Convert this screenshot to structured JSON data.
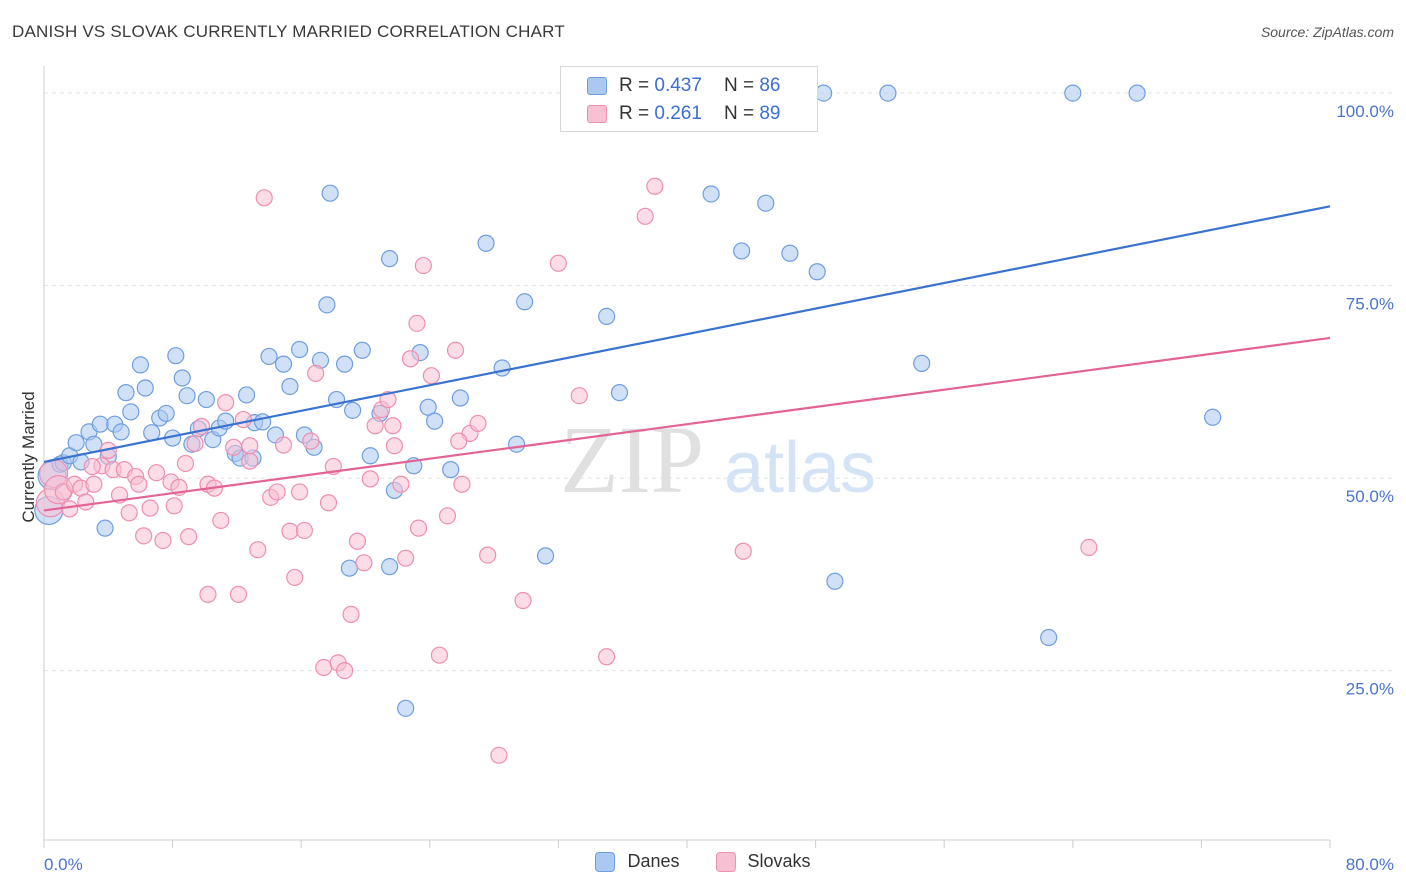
{
  "title": "DANISH VS SLOVAK CURRENTLY MARRIED CORRELATION CHART",
  "source": "Source: ZipAtlas.com",
  "watermark": {
    "zip": "ZIP",
    "atlas": "atlas"
  },
  "legend_stats": [
    {
      "r_label": "R =",
      "r_value": "0.437",
      "n_label": "N =",
      "n_value": "86",
      "color": "#aac8f0",
      "stroke": "#6f9ee0"
    },
    {
      "r_label": "R =",
      "r_value": "0.261",
      "n_label": "N =",
      "n_value": "89",
      "color": "#f8c0d3",
      "stroke": "#ee8fb0"
    }
  ],
  "chart_data": {
    "type": "scatter",
    "title": "DANISH VS SLOVAK CURRENTLY MARRIED CORRELATION CHART",
    "xlabel": "",
    "ylabel": "Currently Married",
    "xlim": [
      0,
      80
    ],
    "ylim": [
      3,
      103
    ],
    "x_tick_labels": [
      "0.0%",
      "80.0%"
    ],
    "y_ticks": [
      25,
      50,
      75,
      100
    ],
    "y_tick_labels": [
      "25.0%",
      "50.0%",
      "75.0%",
      "100.0%"
    ],
    "grid": true,
    "legend_position": "bottom",
    "series": [
      {
        "name": "Danes",
        "color": "#6f9ee0",
        "fill": "#aac8f0",
        "line_color": "#3a72d0",
        "trend": [
          [
            0,
            52.1
          ],
          [
            80,
            85.3
          ]
        ],
        "points": [
          [
            0.3,
            45.8
          ],
          [
            0.5,
            50.3
          ],
          [
            1.0,
            51.8
          ],
          [
            1.2,
            52.0
          ],
          [
            1.6,
            52.9
          ],
          [
            2.0,
            54.6
          ],
          [
            2.3,
            52.1
          ],
          [
            2.8,
            56.0
          ],
          [
            3.1,
            54.4
          ],
          [
            3.5,
            57.0
          ],
          [
            4.0,
            52.8
          ],
          [
            4.4,
            57.0
          ],
          [
            4.8,
            56.0
          ],
          [
            5.1,
            61.1
          ],
          [
            5.4,
            58.6
          ],
          [
            6.0,
            64.7
          ],
          [
            6.3,
            61.7
          ],
          [
            6.7,
            55.9
          ],
          [
            7.2,
            57.8
          ],
          [
            7.6,
            58.4
          ],
          [
            8.0,
            55.2
          ],
          [
            8.2,
            65.9
          ],
          [
            8.6,
            63.0
          ],
          [
            8.9,
            60.7
          ],
          [
            9.2,
            54.4
          ],
          [
            9.6,
            56.4
          ],
          [
            10.1,
            60.2
          ],
          [
            10.5,
            55.0
          ],
          [
            10.9,
            56.5
          ],
          [
            11.3,
            57.4
          ],
          [
            11.9,
            53.2
          ],
          [
            12.2,
            52.6
          ],
          [
            12.6,
            60.8
          ],
          [
            13.1,
            57.2
          ],
          [
            13.6,
            57.3
          ],
          [
            14.0,
            65.8
          ],
          [
            14.4,
            55.6
          ],
          [
            14.9,
            64.8
          ],
          [
            15.3,
            61.9
          ],
          [
            15.9,
            66.7
          ],
          [
            16.2,
            55.6
          ],
          [
            16.8,
            54.0
          ],
          [
            17.2,
            65.3
          ],
          [
            17.6,
            72.5
          ],
          [
            17.8,
            87.0
          ],
          [
            18.2,
            60.2
          ],
          [
            18.7,
            64.8
          ],
          [
            19.2,
            58.8
          ],
          [
            19.8,
            66.6
          ],
          [
            20.3,
            52.9
          ],
          [
            20.9,
            58.4
          ],
          [
            21.5,
            78.5
          ],
          [
            21.8,
            48.4
          ],
          [
            22.5,
            20.1
          ],
          [
            23.0,
            51.6
          ],
          [
            23.4,
            66.3
          ],
          [
            23.9,
            59.2
          ],
          [
            24.3,
            57.4
          ],
          [
            25.3,
            51.1
          ],
          [
            25.9,
            60.4
          ],
          [
            27.5,
            80.5
          ],
          [
            28.5,
            64.3
          ],
          [
            29.4,
            54.4
          ],
          [
            29.9,
            72.9
          ],
          [
            31.2,
            39.9
          ],
          [
            33.2,
            100.0
          ],
          [
            35.0,
            71.0
          ],
          [
            35.8,
            61.1
          ],
          [
            41.5,
            86.9
          ],
          [
            43.4,
            79.5
          ],
          [
            44.9,
            85.7
          ],
          [
            45.0,
            100.0
          ],
          [
            46.4,
            79.2
          ],
          [
            48.1,
            76.8
          ],
          [
            48.5,
            100.0
          ],
          [
            49.2,
            36.6
          ],
          [
            52.5,
            100.0
          ],
          [
            54.6,
            64.9
          ],
          [
            62.5,
            29.3
          ],
          [
            64.0,
            100.0
          ],
          [
            68.0,
            100.0
          ],
          [
            72.7,
            57.9
          ],
          [
            3.8,
            43.5
          ],
          [
            13.0,
            52.6
          ],
          [
            21.5,
            38.5
          ],
          [
            19.0,
            38.3
          ]
        ]
      },
      {
        "name": "Slovaks",
        "color": "#ee8fb0",
        "fill": "#f8c0d3",
        "line_color": "#e26394",
        "trend": [
          [
            0,
            45.8
          ],
          [
            80,
            68.2
          ]
        ],
        "points": [
          [
            0.4,
            46.8
          ],
          [
            0.6,
            50.6
          ],
          [
            0.9,
            48.5
          ],
          [
            1.2,
            48.2
          ],
          [
            1.6,
            46.0
          ],
          [
            1.9,
            49.2
          ],
          [
            2.3,
            48.7
          ],
          [
            2.6,
            46.9
          ],
          [
            3.1,
            49.2
          ],
          [
            3.6,
            51.6
          ],
          [
            4.0,
            53.6
          ],
          [
            4.3,
            51.1
          ],
          [
            4.7,
            47.8
          ],
          [
            5.0,
            51.1
          ],
          [
            5.3,
            45.5
          ],
          [
            5.7,
            50.2
          ],
          [
            5.9,
            49.2
          ],
          [
            6.2,
            42.5
          ],
          [
            6.6,
            46.1
          ],
          [
            7.0,
            50.7
          ],
          [
            7.4,
            41.9
          ],
          [
            7.9,
            49.5
          ],
          [
            8.1,
            46.4
          ],
          [
            8.4,
            48.8
          ],
          [
            8.8,
            51.9
          ],
          [
            9.0,
            42.4
          ],
          [
            9.4,
            54.5
          ],
          [
            9.8,
            56.7
          ],
          [
            10.2,
            49.2
          ],
          [
            10.6,
            48.7
          ],
          [
            11.0,
            44.5
          ],
          [
            11.3,
            59.8
          ],
          [
            11.8,
            54.0
          ],
          [
            12.1,
            34.9
          ],
          [
            12.4,
            57.6
          ],
          [
            12.8,
            52.2
          ],
          [
            13.3,
            40.7
          ],
          [
            13.7,
            86.4
          ],
          [
            14.1,
            47.5
          ],
          [
            14.5,
            48.2
          ],
          [
            14.9,
            54.3
          ],
          [
            15.3,
            43.1
          ],
          [
            15.6,
            37.1
          ],
          [
            15.9,
            48.2
          ],
          [
            16.2,
            43.2
          ],
          [
            16.6,
            54.8
          ],
          [
            16.9,
            63.6
          ],
          [
            17.4,
            25.4
          ],
          [
            17.7,
            46.8
          ],
          [
            18.0,
            51.5
          ],
          [
            18.3,
            26.0
          ],
          [
            18.7,
            25.0
          ],
          [
            19.1,
            32.3
          ],
          [
            19.5,
            41.8
          ],
          [
            19.9,
            39.0
          ],
          [
            20.3,
            49.9
          ],
          [
            20.6,
            56.8
          ],
          [
            21.0,
            58.9
          ],
          [
            21.4,
            60.2
          ],
          [
            21.8,
            54.2
          ],
          [
            22.2,
            49.2
          ],
          [
            22.5,
            39.6
          ],
          [
            22.8,
            65.5
          ],
          [
            23.2,
            70.1
          ],
          [
            23.6,
            77.6
          ],
          [
            24.1,
            63.3
          ],
          [
            24.6,
            27.0
          ],
          [
            25.1,
            45.1
          ],
          [
            25.6,
            66.6
          ],
          [
            26.0,
            49.2
          ],
          [
            26.5,
            55.8
          ],
          [
            27.0,
            57.1
          ],
          [
            27.6,
            40.0
          ],
          [
            28.3,
            14.0
          ],
          [
            29.8,
            34.1
          ],
          [
            32.0,
            77.9
          ],
          [
            33.3,
            60.7
          ],
          [
            35.0,
            26.8
          ],
          [
            36.0,
            100.0
          ],
          [
            37.4,
            84.0
          ],
          [
            38.0,
            87.9
          ],
          [
            43.5,
            40.5
          ],
          [
            65.0,
            41.0
          ],
          [
            3.0,
            51.5
          ],
          [
            12.8,
            54.2
          ],
          [
            10.2,
            34.9
          ],
          [
            21.7,
            56.8
          ],
          [
            25.8,
            54.8
          ],
          [
            23.3,
            43.5
          ]
        ]
      }
    ]
  }
}
